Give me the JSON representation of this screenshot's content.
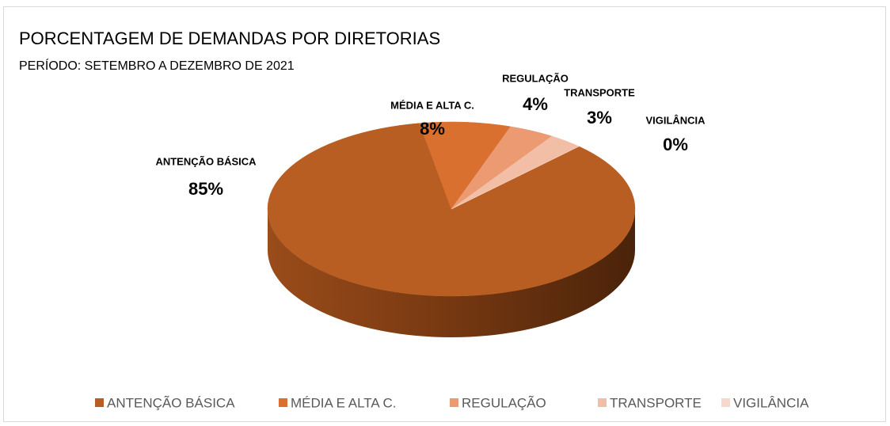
{
  "chart_data": {
    "type": "pie",
    "title": "PORCENTAGEM DE DEMANDAS POR DIRETORIAS",
    "subtitle": "PERÍODO: SETEMBRO A DEZEMBRO DE 2021",
    "categories": [
      "ANTENÇÃO BÁSICA",
      "MÉDIA E ALTA C.",
      "REGULAÇÃO",
      "TRANSPORTE",
      "VIGILÂNCIA"
    ],
    "values": [
      85,
      8,
      4,
      3,
      0
    ],
    "value_labels": [
      "85%",
      "8%",
      "4%",
      "3%",
      "0%"
    ],
    "colors": [
      "#b85e22",
      "#d97030",
      "#eb9a72",
      "#f2bfa6",
      "#f6d9cb"
    ],
    "legend": "bottom"
  }
}
